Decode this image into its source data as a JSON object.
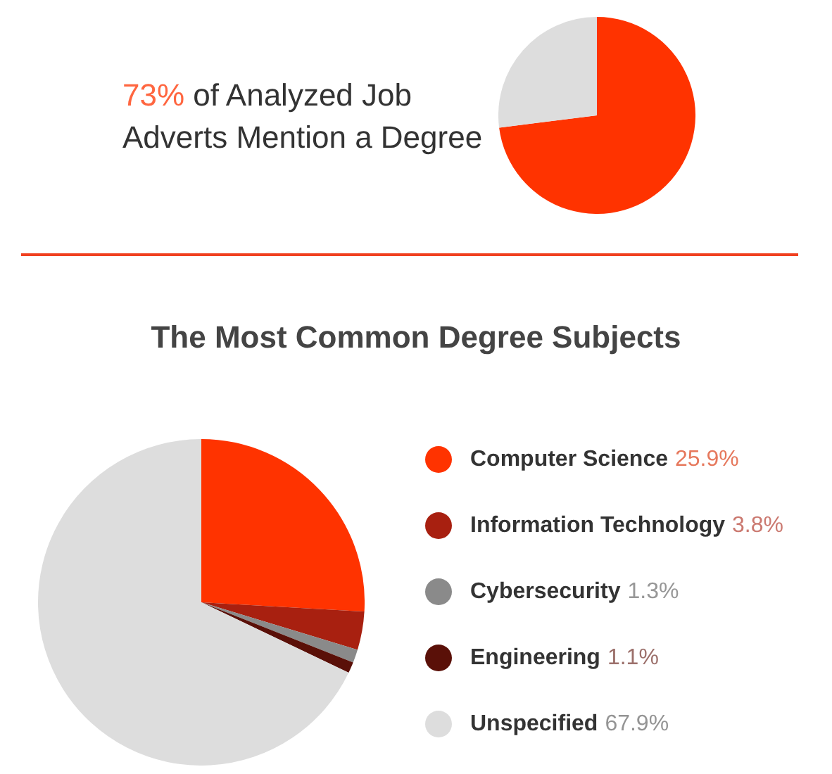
{
  "chart_data": [
    {
      "type": "pie",
      "title": "73% of Analyzed Job Adverts Mention a Degree",
      "categories": [
        null,
        null
      ],
      "values": [
        73,
        27
      ],
      "colors": [
        "#ff3300",
        "#dddddd"
      ]
    },
    {
      "type": "pie",
      "title": "The Most Common Degree Subjects",
      "categories": [
        "Computer Science",
        "Information Technology",
        "Cybersecurity",
        "Engineering",
        "Unspecified"
      ],
      "values": [
        25.9,
        3.8,
        1.3,
        1.1,
        67.9
      ],
      "colors": [
        "#ff3300",
        "#a82010",
        "#8a8a8a",
        "#5a1008",
        "#dddddd"
      ],
      "value_labels": [
        "25.9%",
        "3.8%",
        "1.3%",
        "1.1%",
        "67.9%"
      ],
      "legend": "right"
    }
  ]
}
